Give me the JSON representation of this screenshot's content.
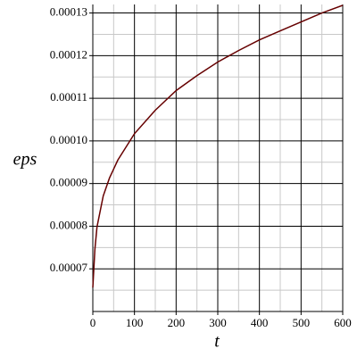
{
  "chart_data": {
    "type": "line",
    "x_label": "t",
    "y_label": "eps",
    "x": [
      0,
      5,
      10,
      25,
      40,
      60,
      100,
      150,
      200,
      250,
      300,
      350,
      400,
      450,
      500,
      550,
      600
    ],
    "series": [
      {
        "color": "#660000",
        "values": [
          6.56e-05,
          7.46e-05,
          7.98e-05,
          8.71e-05,
          9.13e-05,
          9.55e-05,
          0.0001017,
          0.0001072,
          0.0001118,
          0.0001153,
          0.0001185,
          0.0001212,
          0.0001237,
          0.0001258,
          0.0001279,
          0.00013,
          0.0001318
        ]
      }
    ],
    "xlim": [
      0,
      600
    ],
    "xticks": [
      0,
      100,
      200,
      300,
      400,
      500,
      600
    ],
    "ylim": [
      6e-05,
      0.000132
    ],
    "yticks": [
      7e-05,
      8e-05,
      9e-05,
      {
        "value": 0.0001,
        "label": "0.00010"
      },
      0.00011,
      0.00012,
      0.00013
    ],
    "grid": true
  }
}
